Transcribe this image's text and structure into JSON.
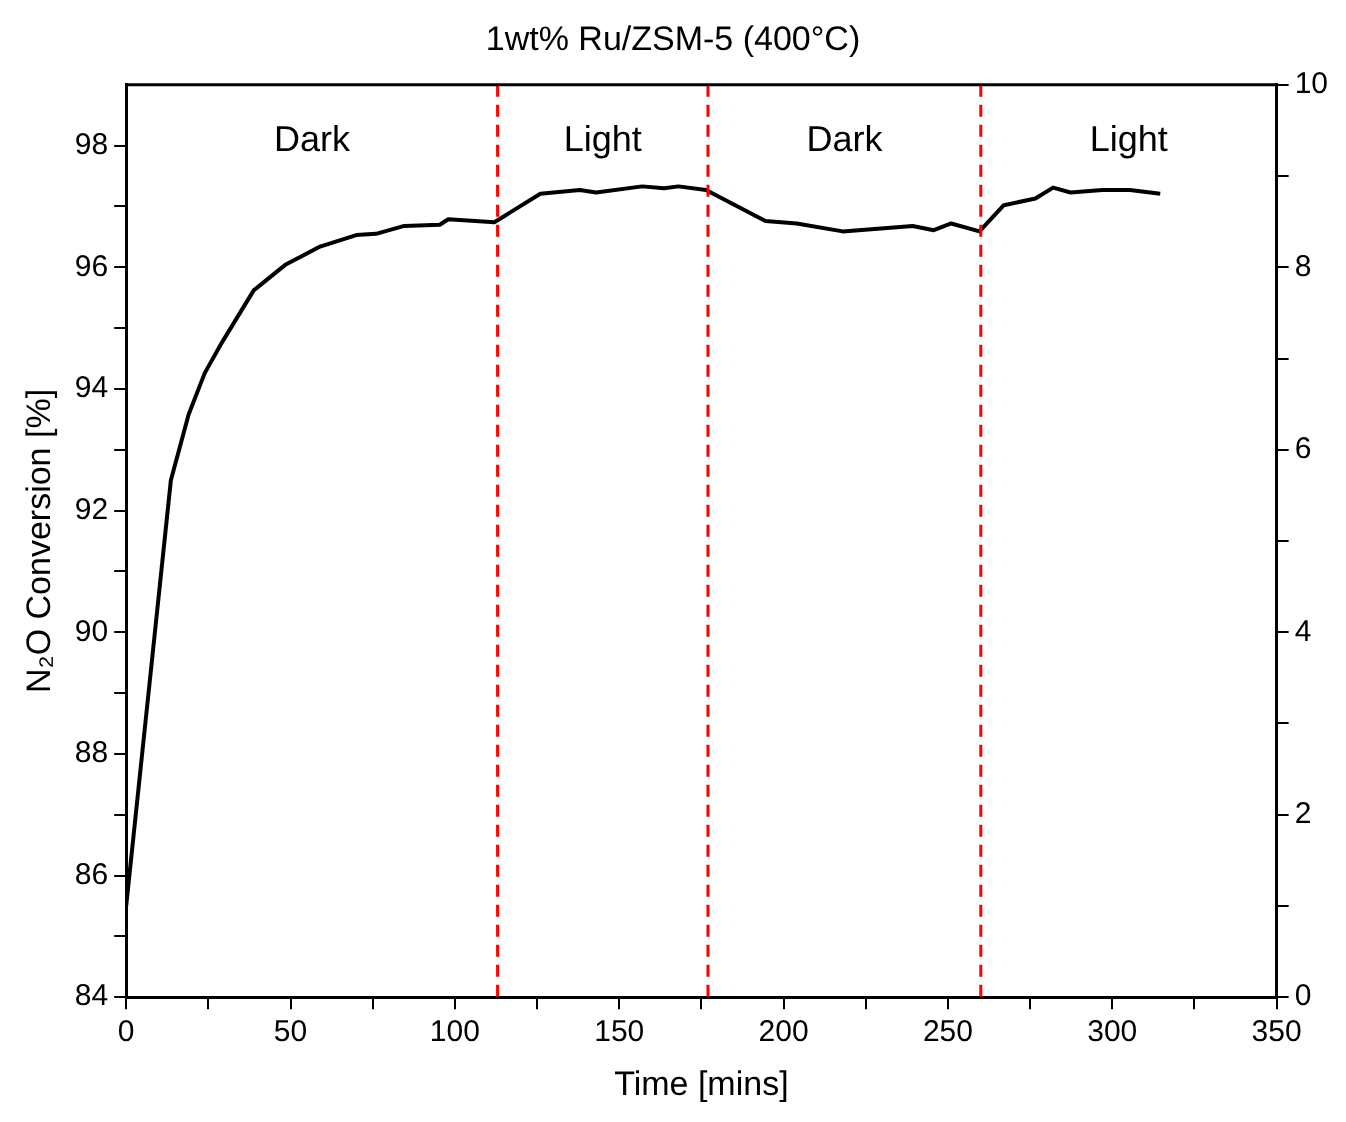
{
  "chart_data": {
    "type": "line",
    "title": "1wt% Ru/ZSM-5 (400°C)",
    "xlabel": "Time [mins]",
    "ylabel": "N₂O Conversion [%]",
    "series": [
      {
        "color": "#000000",
        "x": [
          0,
          13.6,
          19,
          23.9,
          29.2,
          38.8,
          48.4,
          59,
          70,
          76,
          84.6,
          95.4,
          98,
          112,
          126,
          138,
          143,
          157,
          163.6,
          168,
          176.4,
          194.5,
          204,
          218,
          239.3,
          245.7,
          251,
          259.6,
          267,
          276.6,
          282,
          287.3,
          297,
          305.4,
          314.6
        ],
        "values": [
          85.5,
          92.5,
          93.58,
          94.26,
          94.77,
          95.62,
          96.04,
          96.34,
          96.53,
          96.55,
          96.68,
          96.7,
          96.79,
          96.74,
          97.21,
          97.27,
          97.23,
          97.33,
          97.3,
          97.33,
          97.27,
          96.76,
          96.72,
          96.59,
          96.68,
          96.61,
          96.72,
          96.59,
          97.02,
          97.13,
          97.31,
          97.23,
          97.27,
          97.27,
          97.21
        ]
      }
    ],
    "xlim": [
      0,
      350
    ],
    "xticks": [
      0,
      {
        "value": 25,
        "label": null
      },
      50,
      {
        "value": 75,
        "label": null
      },
      100,
      {
        "value": 125,
        "label": null
      },
      150,
      {
        "value": 175,
        "label": null
      },
      200,
      {
        "value": 225,
        "label": null
      },
      250,
      {
        "value": 275,
        "label": null
      },
      300,
      {
        "value": 325,
        "label": null
      },
      350
    ],
    "ylim": [
      84,
      99
    ],
    "yticks": [
      84,
      {
        "value": 85,
        "label": null
      },
      86,
      {
        "value": 87,
        "label": null
      },
      88,
      {
        "value": 89,
        "label": null
      },
      90,
      {
        "value": 91,
        "label": null
      },
      92,
      {
        "value": 93,
        "label": null
      },
      94,
      {
        "value": 95,
        "label": null
      },
      96,
      {
        "value": 97,
        "label": null
      },
      98
    ],
    "y2lim": [
      0,
      10
    ],
    "y2ticks": [
      0,
      {
        "value": 1,
        "label": null
      },
      2,
      {
        "value": 3,
        "label": null
      },
      4,
      {
        "value": 5,
        "label": null
      },
      6,
      {
        "value": 7,
        "label": null
      },
      8,
      {
        "value": 9,
        "label": null
      },
      10
    ],
    "ref_lines": [
      {
        "axis": "x",
        "value": 113,
        "color": "#ff0000",
        "line_style": "dashed"
      },
      {
        "axis": "x",
        "value": 177,
        "color": "#ff0000",
        "line_style": "dashed"
      },
      {
        "axis": "x",
        "value": 260,
        "color": "#ff0000",
        "line_style": "dashed"
      }
    ],
    "annotations": [
      "Dark",
      "Light",
      "Dark",
      "Light"
    ],
    "grid": false,
    "legend": false,
    "marker": "none",
    "line_style": "solid"
  }
}
